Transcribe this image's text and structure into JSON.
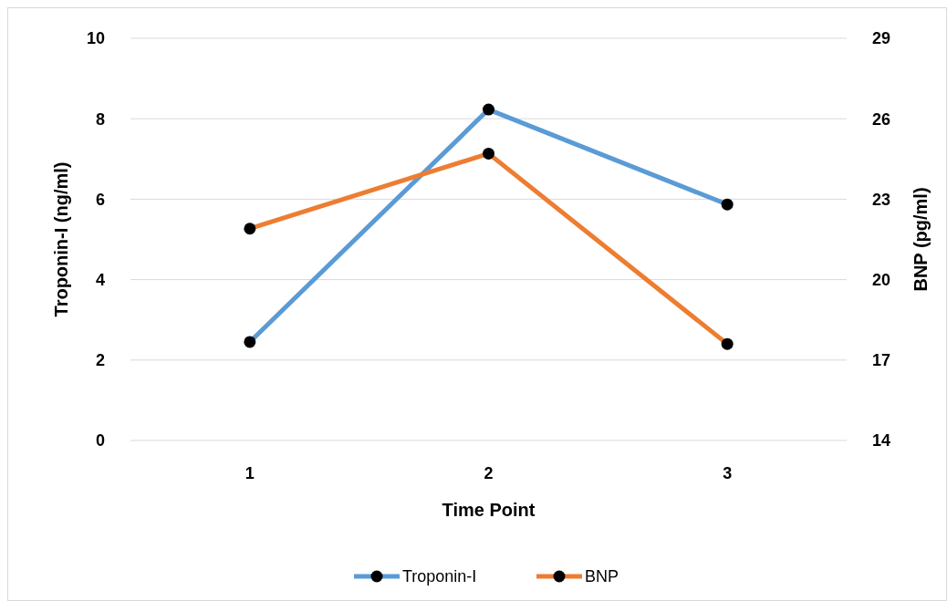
{
  "chart_data": {
    "type": "line",
    "xlabel": "Time Point",
    "ylabel": "Troponin-I (ng/ml)",
    "y2label": "BNP (pg/ml)",
    "categories": [
      "1",
      "2",
      "3"
    ],
    "series": [
      {
        "name": "Troponin-I",
        "color": "#5b9bd5",
        "values": [
          2.45,
          8.23,
          5.87
        ]
      },
      {
        "name": "BNP",
        "color": "#ed7d31",
        "axis": "y2",
        "values": [
          21.9,
          24.7,
          17.6
        ]
      }
    ],
    "ylim": [
      0,
      10
    ],
    "yticks": [
      0,
      2,
      4,
      6,
      8,
      10
    ],
    "y2lim": [
      14,
      29
    ],
    "y2ticks": [
      14,
      17,
      20,
      23,
      26,
      29
    ],
    "grid": "y",
    "legend": "bottom",
    "marker": "circle",
    "line_style": "solid"
  }
}
